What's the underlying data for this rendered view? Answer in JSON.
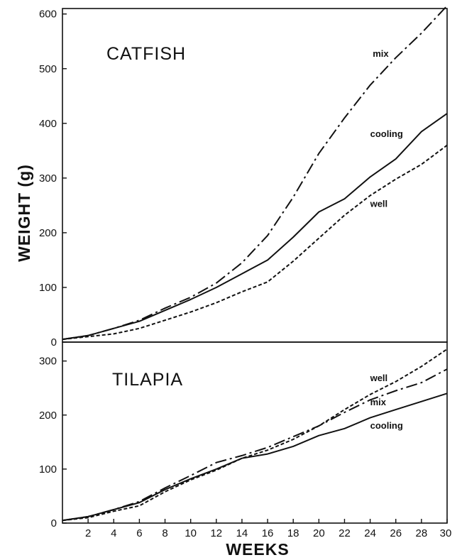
{
  "chart_data": [
    {
      "type": "line",
      "title": "CATFISH",
      "ylabel": "WEIGHT (g)",
      "ylim": [
        0,
        610
      ],
      "yticks": [
        0,
        100,
        200,
        300,
        400,
        500,
        600
      ],
      "xlim": [
        0,
        30
      ],
      "x": [
        0,
        2,
        4,
        6,
        8,
        10,
        12,
        14,
        16,
        18,
        20,
        22,
        24,
        26,
        28,
        30
      ],
      "series": [
        {
          "name": "mix",
          "style": "dashdot",
          "label_x": 24.2,
          "label_y": 522,
          "values": [
            5,
            12,
            25,
            40,
            62,
            82,
            108,
            145,
            195,
            265,
            345,
            410,
            470,
            520,
            565,
            615
          ]
        },
        {
          "name": "cooling",
          "style": "solid",
          "label_x": 24.0,
          "label_y": 375,
          "values": [
            5,
            12,
            25,
            38,
            58,
            78,
            100,
            125,
            150,
            192,
            238,
            262,
            302,
            335,
            385,
            418
          ]
        },
        {
          "name": "well",
          "style": "dotted",
          "label_x": 24.0,
          "label_y": 247,
          "values": [
            5,
            10,
            15,
            25,
            40,
            55,
            72,
            92,
            110,
            148,
            190,
            232,
            268,
            298,
            325,
            360
          ]
        }
      ]
    },
    {
      "type": "line",
      "title": "TILAPIA",
      "ylim": [
        0,
        335
      ],
      "yticks": [
        0,
        100,
        200,
        300
      ],
      "xlim": [
        0,
        30
      ],
      "xlabel": "WEEKS",
      "xticks": [
        2,
        4,
        6,
        8,
        10,
        12,
        14,
        16,
        18,
        20,
        22,
        24,
        26,
        28,
        30
      ],
      "x": [
        0,
        2,
        4,
        6,
        8,
        10,
        12,
        14,
        16,
        18,
        20,
        22,
        24,
        26,
        28,
        30
      ],
      "series": [
        {
          "name": "well",
          "style": "dotted",
          "label_x": 24.0,
          "label_y": 263,
          "values": [
            5,
            10,
            22,
            32,
            58,
            80,
            98,
            120,
            135,
            155,
            180,
            210,
            238,
            262,
            290,
            322
          ]
        },
        {
          "name": "mix",
          "style": "dashdot",
          "label_x": 24.0,
          "label_y": 218,
          "values": [
            5,
            12,
            25,
            40,
            65,
            88,
            112,
            125,
            140,
            160,
            180,
            205,
            228,
            245,
            260,
            285
          ]
        },
        {
          "name": "cooling",
          "style": "solid",
          "label_x": 24.0,
          "label_y": 175,
          "values": [
            5,
            12,
            25,
            38,
            62,
            82,
            100,
            120,
            128,
            142,
            162,
            175,
            195,
            210,
            225,
            240
          ]
        }
      ]
    }
  ]
}
